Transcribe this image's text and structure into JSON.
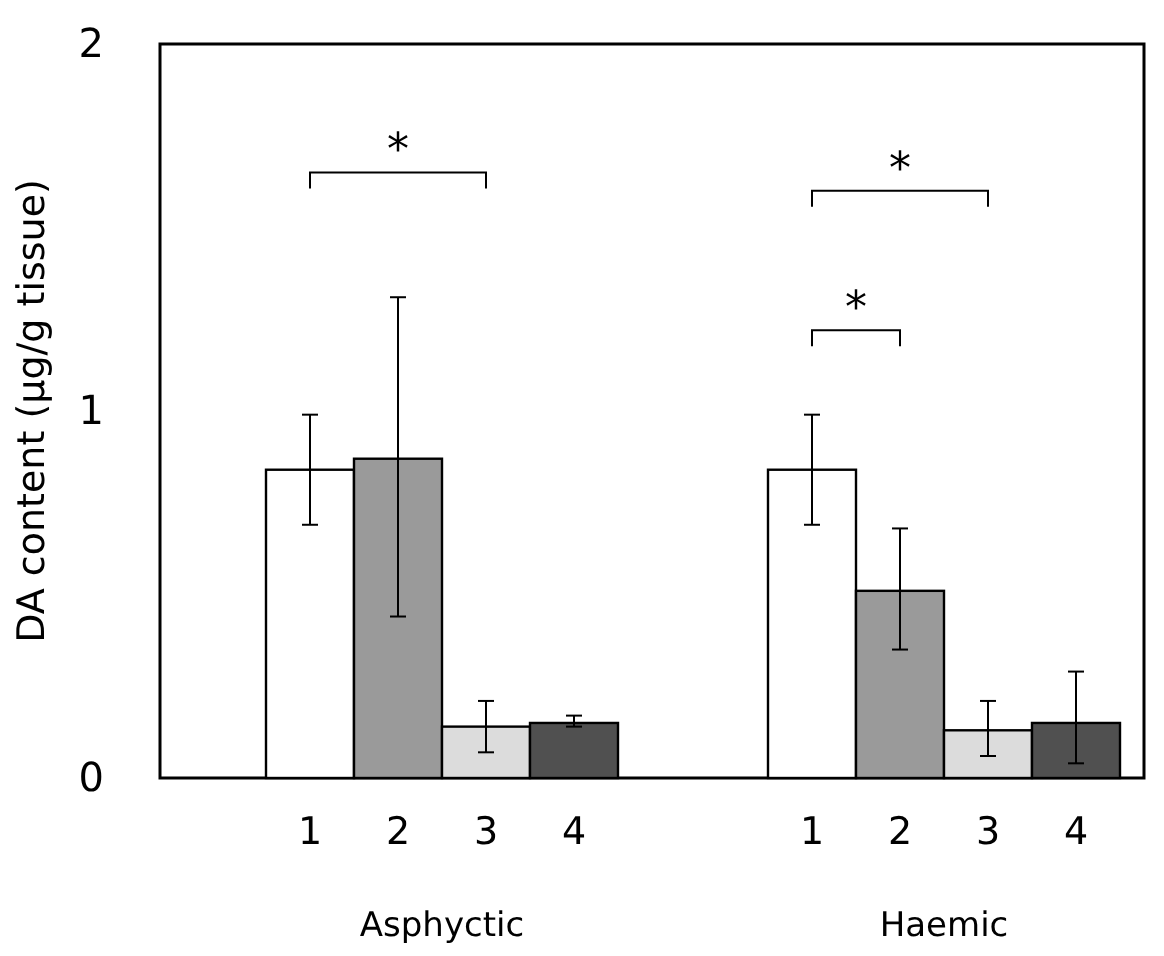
{
  "chart_data": {
    "type": "bar",
    "ylabel": "DA content (μg/g tissue)",
    "categories": [
      "1",
      "2",
      "3",
      "4",
      "1",
      "2",
      "3",
      "4"
    ],
    "values": [
      0.84,
      0.87,
      0.14,
      0.15,
      0.84,
      0.51,
      0.13,
      0.15
    ],
    "errors": [
      [
        0.69,
        0.99
      ],
      [
        0.44,
        1.31
      ],
      [
        0.07,
        0.21
      ],
      [
        0.14,
        0.17
      ],
      [
        0.69,
        0.99
      ],
      [
        0.35,
        0.68
      ],
      [
        0.06,
        0.21
      ],
      [
        0.04,
        0.29
      ]
    ],
    "colors": [
      "#ffffff",
      "#9a9a9a",
      "#dcdcdc",
      "#505050",
      "#ffffff",
      "#9a9a9a",
      "#dcdcdc",
      "#505050"
    ],
    "ylim": [
      0,
      2
    ],
    "yticks": [
      0,
      1,
      2
    ],
    "annotations": [
      "*",
      "*",
      "*",
      "Asphyctic",
      "Haemic"
    ]
  }
}
